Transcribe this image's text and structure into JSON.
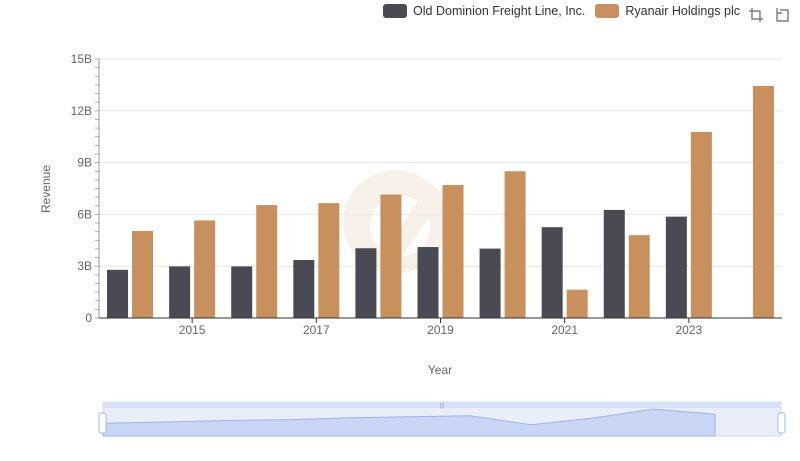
{
  "legend": {
    "items": [
      {
        "label": "Old Dominion Freight Line, Inc.",
        "color": "#4a4a55"
      },
      {
        "label": "Ryanair Holdings plc",
        "color": "#c8905d"
      }
    ]
  },
  "toolbox": {
    "icons": [
      "zoom-icon",
      "restore-icon"
    ]
  },
  "chart_data": {
    "type": "bar",
    "xlabel": "Year",
    "ylabel": "Revenue",
    "ylim": [
      0,
      15000000000
    ],
    "yticks": [
      "0",
      "3B",
      "6B",
      "9B",
      "12B",
      "15B"
    ],
    "xticks": [
      "2015",
      "2017",
      "2019",
      "2021",
      "2023"
    ],
    "categories": [
      "2014",
      "2015",
      "2016",
      "2017",
      "2018",
      "2019",
      "2020",
      "2021",
      "2022",
      "2023",
      "2024"
    ],
    "series": [
      {
        "name": "Old Dominion Freight Line, Inc.",
        "color": "#4a4a55",
        "values": [
          2790000000,
          2990000000,
          2990000000,
          3360000000,
          4040000000,
          4110000000,
          4020000000,
          5260000000,
          6260000000,
          5870000000,
          null
        ]
      },
      {
        "name": "Ryanair Holdings plc",
        "color": "#c8905d",
        "values": [
          5040000000,
          5650000000,
          6540000000,
          6650000000,
          7150000000,
          7700000000,
          8500000000,
          1640000000,
          4800000000,
          10780000000,
          13440000000
        ]
      }
    ],
    "grid": true,
    "legend_position": "top-right"
  }
}
